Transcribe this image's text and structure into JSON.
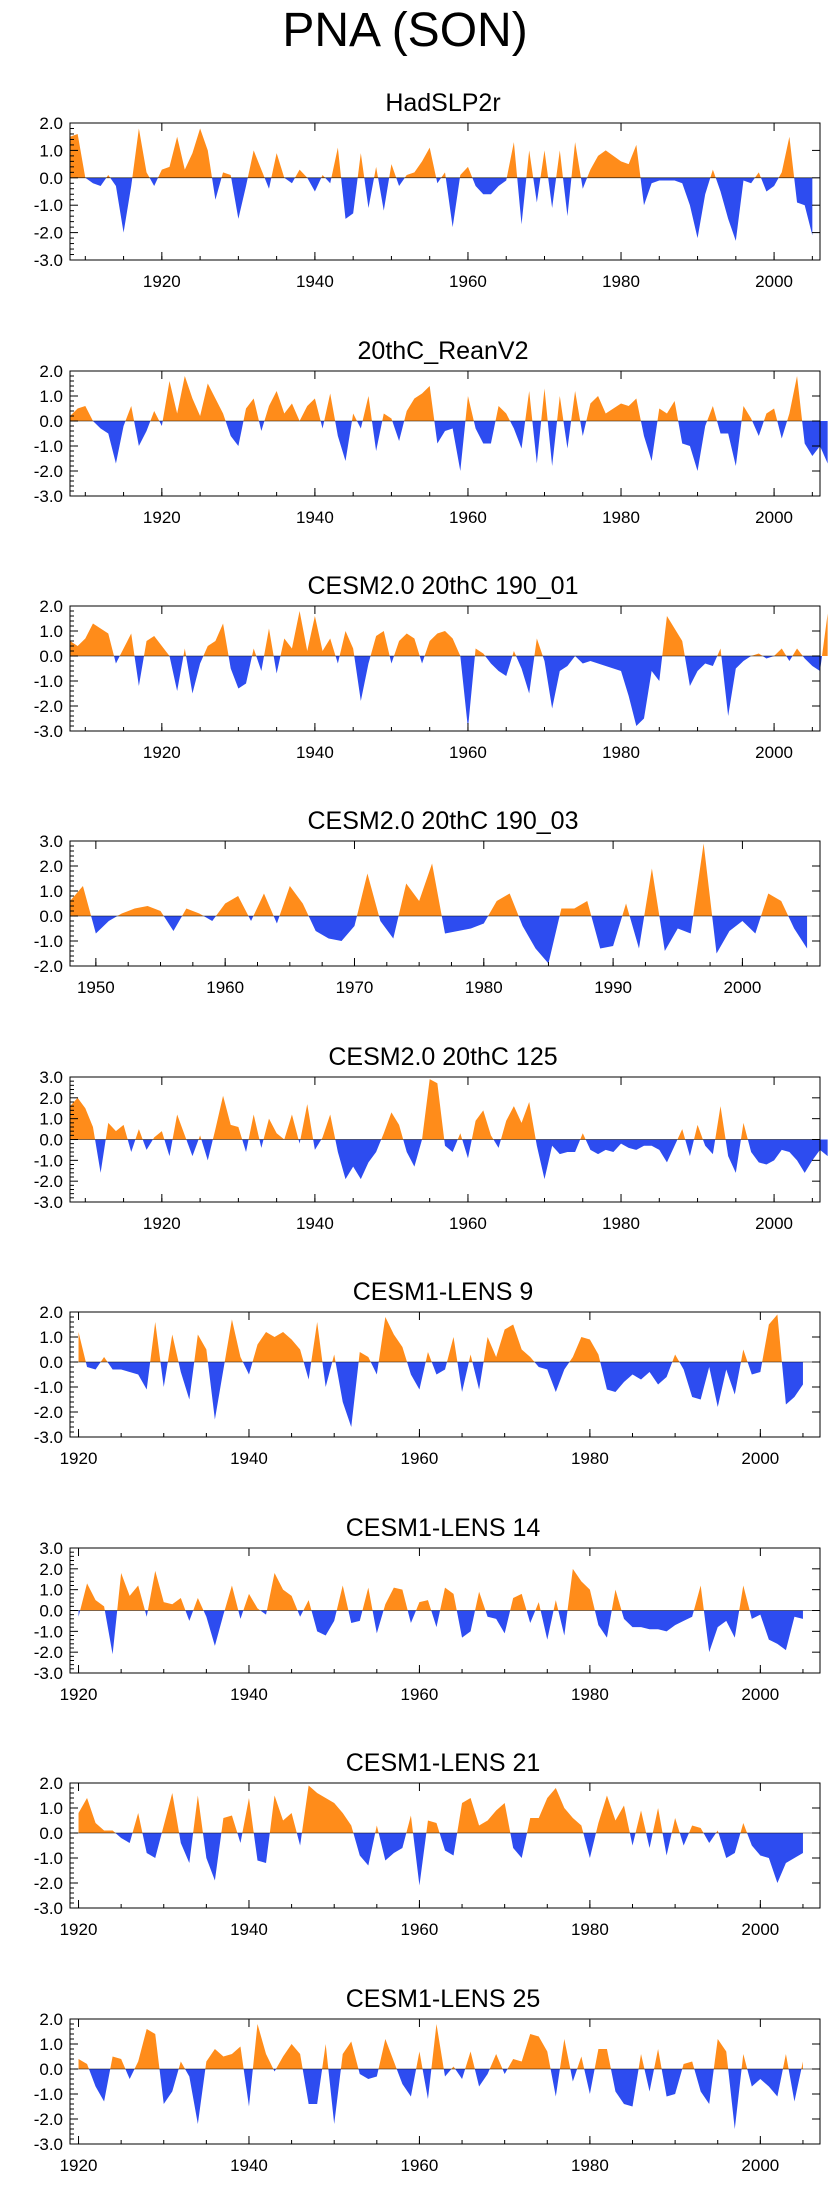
{
  "title": "PNA (SON)",
  "colors": {
    "positive": "#FF8C1A",
    "negative": "#2D4CF0",
    "axis": "#000000"
  },
  "chart_data": [
    {
      "type": "area",
      "title": "HadSLP2r",
      "xlim": [
        1908,
        2006
      ],
      "ylim": [
        -3.0,
        2.0
      ],
      "yticks": [
        2.0,
        1.0,
        0.0,
        -1.0,
        -2.0,
        -3.0
      ],
      "ytick_labels": [
        "2.0",
        "1.0",
        "0.0",
        "-1.0",
        "-2.0",
        "-3.0"
      ],
      "xticks": [
        1920,
        1940,
        1960,
        1980,
        2000
      ],
      "xtick_labels": [
        "1920",
        "1940",
        "1960",
        "1980",
        "2000"
      ],
      "x_start": 1908,
      "x_end": 2005,
      "values": [
        1.5,
        1.6,
        0.0,
        -0.2,
        -0.3,
        0.1,
        -0.3,
        -2.0,
        -0.3,
        1.8,
        0.2,
        -0.3,
        0.3,
        0.4,
        1.5,
        0.3,
        0.9,
        1.8,
        1.0,
        -0.8,
        0.2,
        0.1,
        -1.5,
        -0.3,
        1.0,
        0.3,
        -0.4,
        0.9,
        0.0,
        -0.2,
        0.3,
        0.0,
        -0.5,
        0.1,
        -0.2,
        1.1,
        -1.5,
        -1.3,
        0.9,
        -1.1,
        0.4,
        -1.2,
        0.5,
        -0.3,
        0.1,
        0.2,
        0.6,
        1.1,
        -0.2,
        0.2,
        -1.8,
        0.1,
        0.4,
        -0.3,
        -0.6,
        -0.6,
        -0.3,
        -0.1,
        1.3,
        -1.7,
        1.0,
        -0.9,
        1.0,
        -1.1,
        1.0,
        -1.4,
        1.3,
        -0.4,
        0.3,
        0.8,
        1.0,
        0.8,
        0.6,
        0.5,
        1.2,
        -1.0,
        -0.2,
        -0.1,
        -0.1,
        -0.1,
        -0.2,
        -1.0,
        -2.2,
        -0.6,
        0.3,
        -0.5,
        -1.5,
        -2.3,
        -0.1,
        -0.2,
        0.2,
        -0.5,
        -0.3,
        0.2,
        1.5,
        -0.9,
        -1.0,
        -2.1
      ]
    },
    {
      "type": "area",
      "title": "20thC_ReanV2",
      "xlim": [
        1908,
        2006
      ],
      "ylim": [
        -3.0,
        2.0
      ],
      "yticks": [
        2.0,
        1.0,
        0.0,
        -1.0,
        -2.0,
        -3.0
      ],
      "ytick_labels": [
        "2.0",
        "1.0",
        "0.0",
        "-1.0",
        "-2.0",
        "-3.0"
      ],
      "xticks": [
        1920,
        1940,
        1960,
        1980,
        2000
      ],
      "xtick_labels": [
        "1920",
        "1940",
        "1960",
        "1980",
        "2000"
      ],
      "x_start": 1908,
      "x_end": 2005,
      "values": [
        0.2,
        0.5,
        0.6,
        0.0,
        -0.3,
        -0.5,
        -1.7,
        -0.2,
        0.6,
        -1.0,
        -0.4,
        0.4,
        -0.2,
        1.6,
        0.3,
        1.8,
        0.9,
        0.2,
        1.5,
        0.9,
        0.3,
        -0.6,
        -1.0,
        0.5,
        0.9,
        -0.4,
        0.6,
        1.2,
        0.3,
        0.7,
        0.0,
        0.6,
        0.9,
        -0.3,
        1.1,
        -0.6,
        -1.6,
        0.3,
        -0.3,
        1.0,
        -1.2,
        0.3,
        0.1,
        -0.8,
        0.4,
        0.9,
        1.1,
        1.4,
        -0.9,
        -0.4,
        -0.3,
        -2.0,
        1.0,
        -0.3,
        -0.9,
        -0.9,
        0.6,
        0.3,
        -0.3,
        -1.1,
        1.2,
        -1.7,
        1.3,
        -1.8,
        1.0,
        -1.1,
        1.2,
        -0.6,
        0.7,
        1.0,
        0.3,
        0.5,
        0.7,
        0.6,
        0.9,
        -0.6,
        -1.6,
        0.5,
        0.3,
        0.8,
        -0.9,
        -1.0,
        -2.0,
        -0.2,
        0.6,
        -0.5,
        -0.5,
        -1.8,
        0.6,
        0.1,
        -0.6,
        0.3,
        0.5,
        -0.7,
        0.3,
        1.8,
        -0.9,
        -1.4,
        -1.0,
        -1.7
      ]
    },
    {
      "type": "area",
      "title": "CESM2.0 20thC 190_01",
      "xlim": [
        1908,
        2006
      ],
      "ylim": [
        -3.0,
        2.0
      ],
      "yticks": [
        2.0,
        1.0,
        0.0,
        -1.0,
        -2.0,
        -3.0
      ],
      "ytick_labels": [
        "2.0",
        "1.0",
        "0.0",
        "-1.0",
        "-2.0",
        "-3.0"
      ],
      "xticks": [
        1920,
        1940,
        1960,
        1980,
        2000
      ],
      "xtick_labels": [
        "1920",
        "1940",
        "1960",
        "1980",
        "2000"
      ],
      "x_start": 1908,
      "x_end": 2005,
      "values": [
        0.6,
        0.4,
        0.7,
        1.3,
        1.1,
        0.9,
        -0.3,
        0.3,
        0.9,
        -1.2,
        0.6,
        0.8,
        0.4,
        0.0,
        -1.4,
        0.3,
        -1.5,
        -0.3,
        0.4,
        0.6,
        1.3,
        -0.5,
        -1.3,
        -1.1,
        0.3,
        -0.6,
        1.1,
        -0.7,
        0.7,
        0.3,
        1.8,
        0.2,
        1.6,
        0.2,
        0.7,
        -0.3,
        1.0,
        0.3,
        -1.8,
        -0.3,
        0.8,
        1.0,
        -0.3,
        0.6,
        0.9,
        0.7,
        -0.3,
        0.6,
        0.9,
        1.0,
        0.7,
        0.0,
        -2.9,
        0.3,
        0.1,
        -0.3,
        -0.6,
        -0.8,
        0.2,
        -0.5,
        -1.5,
        0.7,
        -0.2,
        -2.1,
        -0.6,
        -0.4,
        0.0,
        -0.3,
        -0.2,
        -0.3,
        -0.4,
        -0.5,
        -0.6,
        -1.6,
        -2.8,
        -2.5,
        -0.6,
        -1.0,
        1.6,
        1.1,
        0.6,
        -1.2,
        -0.6,
        -0.3,
        -0.4,
        0.3,
        -2.4,
        -0.5,
        -0.2,
        0.0,
        0.1,
        -0.1,
        0.0,
        0.3,
        -0.2,
        0.3,
        -0.1,
        -0.4,
        -0.6,
        1.7
      ]
    },
    {
      "type": "area",
      "title": "CESM2.0 20thC 190_03",
      "xlim": [
        1948,
        2006
      ],
      "ylim": [
        -2.0,
        3.0
      ],
      "yticks": [
        3.0,
        2.0,
        1.0,
        0.0,
        -1.0,
        -2.0
      ],
      "ytick_labels": [
        "3.0",
        "2.0",
        "1.0",
        "0.0",
        "-1.0",
        "-2.0"
      ],
      "xticks": [
        1950,
        1960,
        1970,
        1980,
        1990,
        2000
      ],
      "xtick_labels": [
        "1950",
        "1960",
        "1970",
        "1980",
        "1990",
        "2000"
      ],
      "x_start": 1948,
      "x_end": 2005,
      "values": [
        0.6,
        1.2,
        -0.7,
        -0.2,
        0.1,
        0.3,
        0.4,
        0.2,
        -0.6,
        0.3,
        0.1,
        -0.2,
        0.5,
        0.8,
        -0.2,
        0.9,
        -0.3,
        1.2,
        0.5,
        -0.6,
        -0.9,
        -1.0,
        -0.4,
        1.7,
        -0.2,
        -0.9,
        1.3,
        0.6,
        2.1,
        -0.7,
        -0.6,
        -0.5,
        -0.3,
        0.6,
        0.9,
        -0.4,
        -1.3,
        -1.9,
        0.3,
        0.3,
        0.6,
        -1.3,
        -1.2,
        0.5,
        -1.3,
        1.9,
        -1.4,
        -0.5,
        -0.7,
        2.9,
        -1.5,
        -0.6,
        -0.2,
        -0.7,
        0.9,
        0.6,
        -0.5,
        -1.3
      ]
    },
    {
      "type": "area",
      "title": "CESM2.0 20thC 125",
      "xlim": [
        1908,
        2006
      ],
      "ylim": [
        -3.0,
        3.0
      ],
      "yticks": [
        3.0,
        2.0,
        1.0,
        0.0,
        -1.0,
        -2.0,
        -3.0
      ],
      "ytick_labels": [
        "3.0",
        "2.0",
        "1.0",
        "0.0",
        "-1.0",
        "-2.0",
        "-3.0"
      ],
      "xticks": [
        1920,
        1940,
        1960,
        1980,
        2000
      ],
      "xtick_labels": [
        "1920",
        "1940",
        "1960",
        "1980",
        "2000"
      ],
      "x_start": 1908,
      "x_end": 2005,
      "values": [
        1.6,
        2.0,
        1.5,
        0.6,
        -1.6,
        0.8,
        0.4,
        0.7,
        -0.6,
        0.5,
        -0.5,
        0.1,
        0.4,
        -0.8,
        1.2,
        0.2,
        -0.8,
        0.2,
        -1.0,
        0.5,
        2.1,
        0.7,
        0.6,
        -0.6,
        1.2,
        -0.4,
        1.0,
        0.3,
        0.0,
        1.2,
        -0.2,
        1.7,
        -0.5,
        0.1,
        1.2,
        -0.6,
        -1.9,
        -1.3,
        -1.9,
        -1.1,
        -0.6,
        0.3,
        1.3,
        0.7,
        -0.6,
        -1.3,
        0.0,
        2.9,
        2.7,
        -0.3,
        -0.6,
        0.3,
        -0.9,
        0.9,
        1.4,
        0.2,
        -0.4,
        0.9,
        1.6,
        0.8,
        1.8,
        -0.3,
        -1.9,
        -0.3,
        -0.7,
        -0.6,
        -0.6,
        0.3,
        -0.5,
        -0.7,
        -0.5,
        -0.6,
        -0.2,
        -0.4,
        -0.5,
        -0.3,
        -0.3,
        -0.5,
        -1.1,
        -0.3,
        0.5,
        -0.8,
        0.7,
        -0.3,
        -0.7,
        1.6,
        -0.8,
        -1.6,
        0.8,
        -0.6,
        -1.1,
        -1.2,
        -1.0,
        -0.5,
        -0.6,
        -1.0,
        -1.6,
        -1.0,
        -0.5,
        -0.8
      ]
    },
    {
      "type": "area",
      "title": "CESM1-LENS 9",
      "xlim": [
        1919,
        2007
      ],
      "ylim": [
        -3.0,
        2.0
      ],
      "yticks": [
        2.0,
        1.0,
        0.0,
        -1.0,
        -2.0,
        -3.0
      ],
      "ytick_labels": [
        "2.0",
        "1.0",
        "0.0",
        "-1.0",
        "-2.0",
        "-3.0"
      ],
      "xticks": [
        1920,
        1940,
        1960,
        1980,
        2000
      ],
      "xtick_labels": [
        "1920",
        "1940",
        "1960",
        "1980",
        "2000"
      ],
      "x_start": 1920,
      "x_end": 2005,
      "values": [
        1.2,
        -0.2,
        -0.3,
        0.2,
        -0.3,
        -0.3,
        -0.4,
        -0.5,
        -1.1,
        1.6,
        -1.0,
        1.1,
        -0.4,
        -1.5,
        1.1,
        0.5,
        -2.3,
        -0.3,
        1.7,
        0.2,
        -0.5,
        0.7,
        1.2,
        1.0,
        1.2,
        0.9,
        0.5,
        -0.7,
        1.6,
        -1.0,
        0.3,
        -1.6,
        -2.6,
        0.4,
        0.2,
        -0.5,
        1.8,
        1.1,
        0.6,
        -0.5,
        -1.1,
        0.4,
        -0.5,
        -0.3,
        1.0,
        -1.2,
        0.3,
        -1.1,
        1.0,
        0.2,
        1.3,
        1.5,
        0.5,
        0.2,
        -0.2,
        -0.3,
        -1.2,
        -0.3,
        0.2,
        1.0,
        0.9,
        0.3,
        -1.1,
        -1.2,
        -0.8,
        -0.5,
        -0.7,
        -0.4,
        -0.9,
        -0.6,
        0.3,
        -0.3,
        -1.4,
        -1.5,
        -0.2,
        -1.8,
        -0.3,
        -1.3,
        0.5,
        -0.5,
        -0.4,
        1.5,
        1.9,
        -1.7,
        -1.4,
        -0.9
      ]
    },
    {
      "type": "area",
      "title": "CESM1-LENS 14",
      "xlim": [
        1919,
        2007
      ],
      "ylim": [
        -3.0,
        3.0
      ],
      "yticks": [
        3.0,
        2.0,
        1.0,
        0.0,
        -1.0,
        -2.0,
        -3.0
      ],
      "ytick_labels": [
        "3.0",
        "2.0",
        "1.0",
        "0.0",
        "-1.0",
        "-2.0",
        "-3.0"
      ],
      "xticks": [
        1920,
        1940,
        1960,
        1980,
        2000
      ],
      "xtick_labels": [
        "1920",
        "1940",
        "1960",
        "1980",
        "2000"
      ],
      "x_start": 1920,
      "x_end": 2005,
      "values": [
        -0.3,
        1.3,
        0.5,
        0.2,
        -2.1,
        1.8,
        0.7,
        1.2,
        -0.3,
        1.9,
        0.4,
        0.3,
        0.6,
        -0.5,
        0.6,
        -0.3,
        -1.7,
        -0.2,
        1.2,
        -0.4,
        0.8,
        0.1,
        -0.2,
        1.8,
        1.0,
        0.7,
        -0.3,
        0.5,
        -1.0,
        -1.2,
        -0.5,
        1.2,
        -0.6,
        -0.5,
        1.1,
        -1.1,
        0.3,
        1.1,
        1.0,
        -0.6,
        0.4,
        0.5,
        -0.8,
        1.1,
        0.8,
        -1.3,
        -1.0,
        0.9,
        -0.3,
        -0.4,
        -1.1,
        0.6,
        0.8,
        -0.6,
        0.4,
        -1.4,
        0.5,
        -1.2,
        2.0,
        1.4,
        1.0,
        -0.7,
        -1.3,
        1.0,
        -0.4,
        -0.8,
        -0.8,
        -0.9,
        -0.9,
        -1.0,
        -0.7,
        -0.5,
        -0.3,
        1.2,
        -2.0,
        -0.8,
        -0.5,
        -1.3,
        1.2,
        -0.4,
        -0.2,
        -1.4,
        -1.6,
        -1.9,
        -0.3,
        -0.4
      ]
    },
    {
      "type": "area",
      "title": "CESM1-LENS 21",
      "xlim": [
        1919,
        2007
      ],
      "ylim": [
        -3.0,
        2.0
      ],
      "yticks": [
        2.0,
        1.0,
        0.0,
        -1.0,
        -2.0,
        -3.0
      ],
      "ytick_labels": [
        "2.0",
        "1.0",
        "0.0",
        "-1.0",
        "-2.0",
        "-3.0"
      ],
      "xticks": [
        1920,
        1940,
        1960,
        1980,
        2000
      ],
      "xtick_labels": [
        "1920",
        "1940",
        "1960",
        "1980",
        "2000"
      ],
      "x_start": 1920,
      "x_end": 2005,
      "values": [
        0.8,
        1.4,
        0.4,
        0.1,
        0.1,
        -0.2,
        -0.4,
        0.8,
        -0.8,
        -1.0,
        0.3,
        1.6,
        -0.4,
        -1.2,
        1.5,
        -1.0,
        -1.9,
        0.6,
        0.7,
        -0.4,
        1.4,
        -1.1,
        -1.2,
        1.5,
        0.5,
        0.8,
        -0.5,
        1.9,
        1.6,
        1.4,
        1.2,
        0.8,
        0.3,
        -0.9,
        -1.3,
        0.3,
        -1.1,
        -0.8,
        -0.6,
        0.7,
        -2.1,
        0.5,
        0.4,
        -0.7,
        -0.9,
        1.2,
        1.4,
        0.3,
        0.5,
        0.9,
        1.2,
        -0.6,
        -1.0,
        0.6,
        0.6,
        1.4,
        1.8,
        1.0,
        0.6,
        0.3,
        -1.0,
        0.4,
        1.5,
        0.5,
        1.1,
        -0.5,
        0.9,
        -0.6,
        1.0,
        -0.9,
        0.6,
        -0.5,
        0.3,
        0.2,
        -0.4,
        0.1,
        -1.0,
        -0.8,
        0.4,
        -0.5,
        -0.9,
        -1.0,
        -2.0,
        -1.2,
        -1.0,
        -0.8
      ]
    },
    {
      "type": "area",
      "title": "CESM1-LENS 25",
      "xlim": [
        1919,
        2007
      ],
      "ylim": [
        -3.0,
        2.0
      ],
      "yticks": [
        2.0,
        1.0,
        0.0,
        -1.0,
        -2.0,
        -3.0
      ],
      "ytick_labels": [
        "2.0",
        "1.0",
        "0.0",
        "-1.0",
        "-2.0",
        "-3.0"
      ],
      "xticks": [
        1920,
        1940,
        1960,
        1980,
        2000
      ],
      "xtick_labels": [
        "1920",
        "1940",
        "1960",
        "1980",
        "2000"
      ],
      "x_start": 1920,
      "x_end": 2005,
      "values": [
        0.4,
        0.2,
        -0.7,
        -1.3,
        0.5,
        0.4,
        -0.4,
        0.3,
        1.6,
        1.4,
        -1.4,
        -0.9,
        0.3,
        -0.3,
        -2.2,
        0.3,
        0.8,
        0.5,
        0.6,
        0.9,
        -1.5,
        1.8,
        0.6,
        -0.1,
        0.5,
        1.0,
        0.6,
        -1.4,
        -1.4,
        1.0,
        -2.2,
        0.6,
        1.1,
        -0.2,
        -0.4,
        -0.3,
        1.2,
        0.3,
        -0.6,
        -1.1,
        0.7,
        -1.2,
        1.8,
        -0.3,
        0.1,
        -0.4,
        0.7,
        -0.7,
        -0.2,
        0.6,
        -0.2,
        0.4,
        0.3,
        1.4,
        1.3,
        0.7,
        -1.1,
        1.2,
        -0.5,
        0.5,
        -1.0,
        0.8,
        0.8,
        -0.9,
        -1.4,
        -1.5,
        0.6,
        -0.9,
        0.8,
        -1.1,
        -1.0,
        0.2,
        0.3,
        -0.9,
        -1.4,
        1.2,
        0.7,
        -2.4,
        0.6,
        -0.7,
        -0.4,
        -0.7,
        -1.1,
        0.6,
        -1.3,
        0.3
      ]
    }
  ]
}
